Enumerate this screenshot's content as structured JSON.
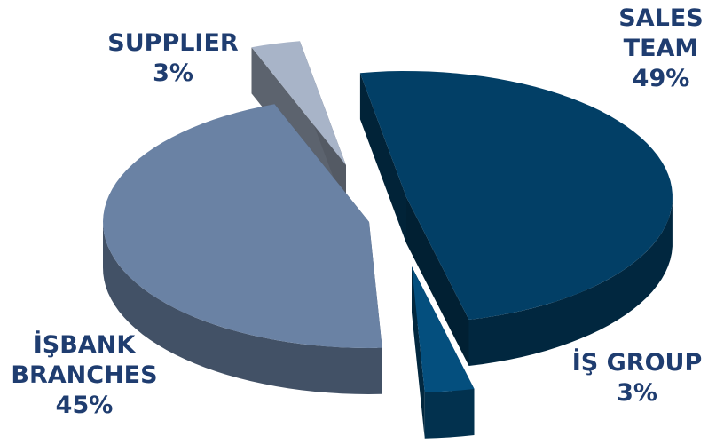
{
  "chart_data": {
    "type": "pie",
    "style": "3d-exploded",
    "title": "",
    "legend": "none",
    "slices": [
      {
        "label_lines": [
          "SALES",
          "TEAM"
        ],
        "label": "SALES TEAM",
        "value": 49,
        "value_text": "49%",
        "color": "#023f66"
      },
      {
        "label_lines": [
          "İŞ GROUP"
        ],
        "label": "İŞ GROUP",
        "value": 3,
        "value_text": "3%",
        "color": "#044f7e"
      },
      {
        "label_lines": [
          "İŞBANK",
          "BRANCHES"
        ],
        "label": "İŞBANK BRANCHES",
        "value": 45,
        "value_text": "45%",
        "color": "#6a82a4"
      },
      {
        "label_lines": [
          "SUPPLIER"
        ],
        "label": "SUPPLIER",
        "value": 3,
        "value_text": "3%",
        "color": "#a8b4c8"
      }
    ]
  }
}
